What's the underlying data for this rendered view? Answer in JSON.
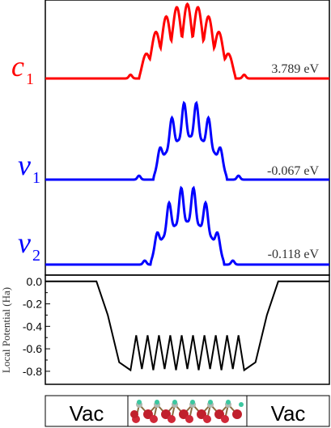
{
  "chart_data": {
    "type": "line",
    "ylabel": "Local Potential (Ha)",
    "yticks": [
      "0.0",
      "-0.2",
      "-0.4",
      "-0.6",
      "-0.8"
    ],
    "ylim": [
      -0.88,
      0.02
    ],
    "grid": false,
    "orbitals": [
      {
        "label": "c",
        "sub": "1",
        "energy": "3.789 eV",
        "color": "#ff0000"
      },
      {
        "label": "v",
        "sub": "1",
        "energy": "-0.067 eV",
        "color": "#0000ff"
      },
      {
        "label": "v",
        "sub": "2",
        "energy": "-0.118 eV",
        "color": "#0000ff"
      }
    ],
    "potential": {
      "x": [
        0,
        0.18,
        0.22,
        0.26,
        0.3,
        0.32,
        0.34,
        0.36,
        0.38,
        0.4,
        0.42,
        0.44,
        0.46,
        0.48,
        0.5,
        0.52,
        0.54,
        0.56,
        0.58,
        0.6,
        0.62,
        0.64,
        0.66,
        0.68,
        0.7,
        0.74,
        0.78,
        0.82,
        1.0
      ],
      "y": [
        0.0,
        0.0,
        -0.3,
        -0.72,
        -0.79,
        -0.48,
        -0.78,
        -0.48,
        -0.79,
        -0.48,
        -0.78,
        -0.48,
        -0.79,
        -0.48,
        -0.78,
        -0.48,
        -0.79,
        -0.48,
        -0.78,
        -0.48,
        -0.79,
        -0.48,
        -0.78,
        -0.48,
        -0.79,
        -0.72,
        -0.3,
        0.0,
        0.0
      ],
      "color": "#000000"
    },
    "regions": [
      {
        "label": "Vac"
      },
      {
        "label": ""
      },
      {
        "label": "Vac"
      }
    ]
  }
}
